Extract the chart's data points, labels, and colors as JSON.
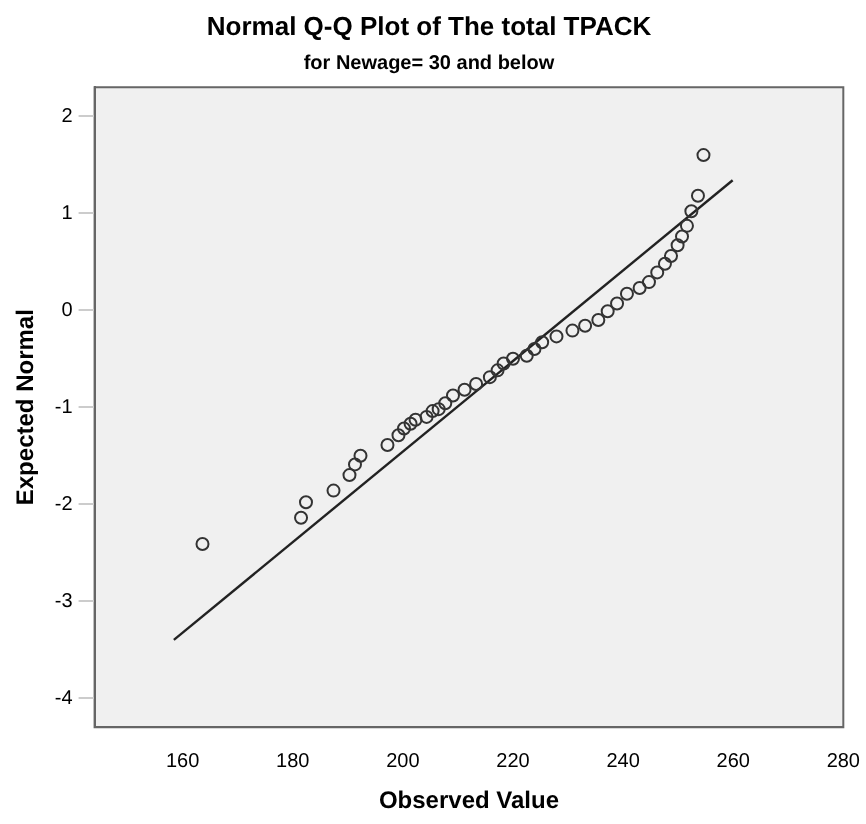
{
  "chart_data": {
    "type": "scatter",
    "title": "Normal Q-Q Plot of The total TPACK",
    "subtitle": "for Newage= 30 and below",
    "xlabel": "Observed Value",
    "ylabel": "Expected Normal",
    "xlim": [
      144,
      280
    ],
    "xticks": [
      160,
      180,
      200,
      220,
      240,
      260,
      280
    ],
    "ylim": [
      -4.3,
      2.3
    ],
    "yticks": [
      -4,
      -3,
      -2,
      -1,
      0,
      1,
      2
    ],
    "grid": false,
    "legend": false,
    "series": [
      {
        "marker": "circle",
        "color": "#333333",
        "x": [
          163.6,
          181.5,
          182.4,
          187.4,
          190.3,
          191.3,
          192.3,
          197.2,
          199.2,
          200.2,
          201.4,
          202.3,
          204.3,
          205.4,
          206.5,
          207.7,
          209.1,
          211.2,
          213.3,
          215.8,
          217.2,
          218.3,
          220,
          222.5,
          223.9,
          225.3,
          227.9,
          230.8,
          233.1,
          235.5,
          237.2,
          238.9,
          240.7,
          243,
          244.7,
          246.2,
          247.6,
          248.7,
          249.9,
          250.7,
          251.6,
          252.4,
          253.6,
          254.6
        ],
        "values": [
          -2.41,
          -2.14,
          -1.98,
          -1.86,
          -1.7,
          -1.59,
          -1.5,
          -1.39,
          -1.29,
          -1.22,
          -1.17,
          -1.13,
          -1.1,
          -1.04,
          -1.02,
          -0.96,
          -0.88,
          -0.82,
          -0.76,
          -0.69,
          -0.62,
          -0.55,
          -0.5,
          -0.47,
          -0.4,
          -0.33,
          -0.27,
          -0.21,
          -0.16,
          -0.1,
          -0.01,
          0.07,
          0.17,
          0.23,
          0.29,
          0.39,
          0.48,
          0.56,
          0.67,
          0.76,
          0.87,
          1.02,
          1.18,
          1.6
        ]
      },
      {
        "type": "line",
        "color": "#222222",
        "x": [
          158.4,
          259.9
        ],
        "values": [
          -3.4,
          1.34
        ]
      }
    ]
  }
}
